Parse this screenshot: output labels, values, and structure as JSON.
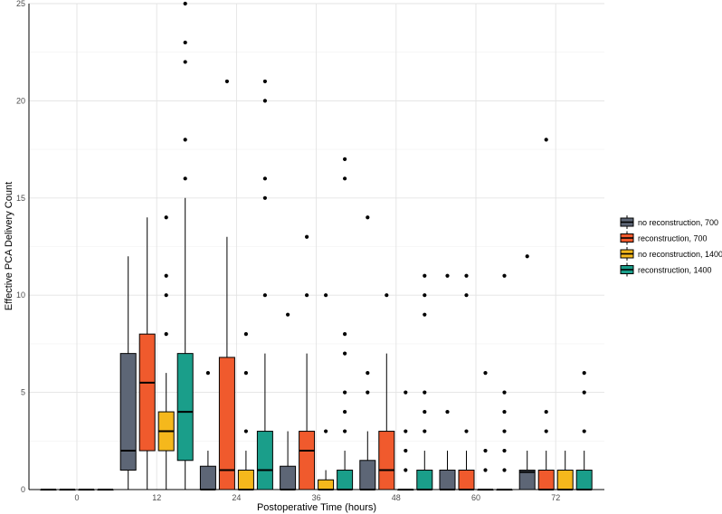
{
  "chart_data": {
    "type": "boxplot",
    "title": "",
    "xlabel": "Postoperative Time (hours)",
    "ylabel": "Effective PCA Delivery Count",
    "categories": [
      "0",
      "12",
      "24",
      "36",
      "48",
      "60",
      "72"
    ],
    "yticks": [
      "0",
      "5",
      "10",
      "15",
      "20",
      "25"
    ],
    "ylim": [
      0,
      25
    ],
    "grid": true,
    "legend_position": "right",
    "series": [
      {
        "name": "no reconstruction, 700",
        "color": "#5d6676",
        "boxes": [
          {
            "q1": 0,
            "median": 0,
            "q3": 0,
            "wlo": 0,
            "whi": 0,
            "outliers": []
          },
          {
            "q1": 1,
            "median": 2,
            "q3": 7,
            "wlo": 0,
            "whi": 12,
            "outliers": []
          },
          {
            "q1": 0,
            "median": 0,
            "q3": 1.2,
            "wlo": 0,
            "whi": 2,
            "outliers": [
              6
            ]
          },
          {
            "q1": 0,
            "median": 0,
            "q3": 1.2,
            "wlo": 0,
            "whi": 3,
            "outliers": [
              9
            ]
          },
          {
            "q1": 0,
            "median": 0,
            "q3": 1.5,
            "wlo": 0,
            "whi": 3,
            "outliers": [
              5,
              6,
              14
            ]
          },
          {
            "q1": 0,
            "median": 0,
            "q3": 1,
            "wlo": 0,
            "whi": 2,
            "outliers": [
              4,
              11
            ]
          },
          {
            "q1": 0,
            "median": 0.9,
            "q3": 1,
            "wlo": 0,
            "whi": 2,
            "outliers": [
              12
            ]
          }
        ]
      },
      {
        "name": "reconstruction, 700",
        "color": "#f05a2d",
        "boxes": [
          {
            "q1": 0,
            "median": 0,
            "q3": 0,
            "wlo": 0,
            "whi": 0,
            "outliers": []
          },
          {
            "q1": 2,
            "median": 5.5,
            "q3": 8,
            "wlo": 0,
            "whi": 14,
            "outliers": []
          },
          {
            "q1": 0,
            "median": 1,
            "q3": 6.8,
            "wlo": 0,
            "whi": 13,
            "outliers": [
              21
            ]
          },
          {
            "q1": 0,
            "median": 2,
            "q3": 3,
            "wlo": 0,
            "whi": 7,
            "outliers": [
              10,
              13
            ]
          },
          {
            "q1": 0,
            "median": 1,
            "q3": 3,
            "wlo": 0,
            "whi": 7,
            "outliers": [
              10
            ]
          },
          {
            "q1": 0,
            "median": 0,
            "q3": 1,
            "wlo": 0,
            "whi": 2,
            "outliers": [
              3,
              10,
              11
            ]
          },
          {
            "q1": 0,
            "median": 0,
            "q3": 1,
            "wlo": 0,
            "whi": 2,
            "outliers": [
              3,
              4,
              18
            ]
          }
        ]
      },
      {
        "name": "no reconstruction, 1400",
        "color": "#f5b81c",
        "boxes": [
          {
            "q1": 0,
            "median": 0,
            "q3": 0,
            "wlo": 0,
            "whi": 0,
            "outliers": []
          },
          {
            "q1": 2,
            "median": 3,
            "q3": 4,
            "wlo": 0,
            "whi": 6,
            "outliers": [
              8,
              10,
              11,
              14
            ]
          },
          {
            "q1": 0,
            "median": 0,
            "q3": 1,
            "wlo": 0,
            "whi": 2,
            "outliers": [
              3,
              6,
              8
            ]
          },
          {
            "q1": 0,
            "median": 0,
            "q3": 0.5,
            "wlo": 0,
            "whi": 1,
            "outliers": [
              3,
              10
            ]
          },
          {
            "q1": 0,
            "median": 0,
            "q3": 0,
            "wlo": 0,
            "whi": 0,
            "outliers": [
              1,
              2,
              3,
              5
            ]
          },
          {
            "q1": 0,
            "median": 0,
            "q3": 0,
            "wlo": 0,
            "whi": 0,
            "outliers": [
              1,
              2,
              6
            ]
          },
          {
            "q1": 0,
            "median": 0,
            "q3": 1,
            "wlo": 0,
            "whi": 2,
            "outliers": []
          }
        ]
      },
      {
        "name": "reconstruction, 1400",
        "color": "#1a9e8a",
        "boxes": [
          {
            "q1": 0,
            "median": 0,
            "q3": 0,
            "wlo": 0,
            "whi": 0,
            "outliers": []
          },
          {
            "q1": 1.5,
            "median": 4,
            "q3": 7,
            "wlo": 0,
            "whi": 15,
            "outliers": [
              16,
              18,
              22,
              23,
              25
            ]
          },
          {
            "q1": 0,
            "median": 1,
            "q3": 3,
            "wlo": 0,
            "whi": 7,
            "outliers": [
              10,
              15,
              16,
              20,
              21
            ]
          },
          {
            "q1": 0,
            "median": 0,
            "q3": 1,
            "wlo": 0,
            "whi": 2,
            "outliers": [
              3,
              4,
              5,
              7,
              8,
              16,
              17
            ]
          },
          {
            "q1": 0,
            "median": 0,
            "q3": 1,
            "wlo": 0,
            "whi": 2,
            "outliers": [
              3,
              4,
              5,
              9,
              10,
              11
            ]
          },
          {
            "q1": 0,
            "median": 0,
            "q3": 0,
            "wlo": 0,
            "whi": 0,
            "outliers": [
              1,
              2,
              3,
              4,
              5,
              11
            ]
          },
          {
            "q1": 0,
            "median": 0,
            "q3": 1,
            "wlo": 0,
            "whi": 2,
            "outliers": [
              3,
              5,
              6
            ]
          }
        ]
      }
    ]
  }
}
